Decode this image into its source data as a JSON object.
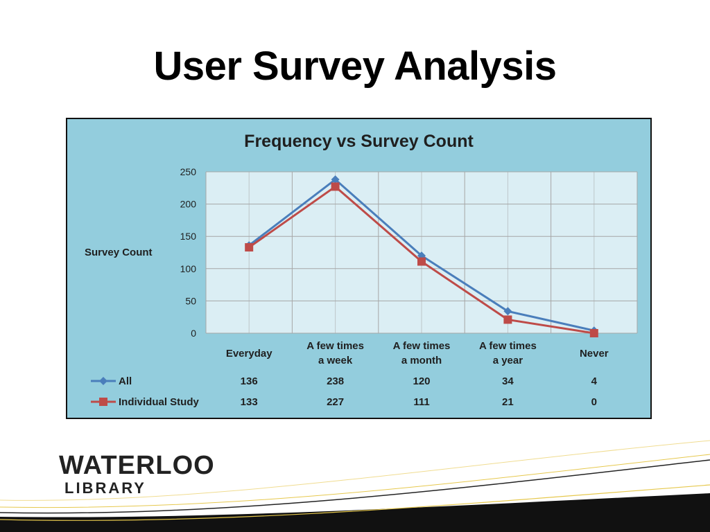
{
  "slide": {
    "title": "User Survey Analysis",
    "logo_line1": "WATERLOO",
    "logo_line2": "LIBRARY"
  },
  "chart_data": {
    "type": "line",
    "title": "Frequency vs Survey Count",
    "xlabel": "",
    "ylabel": "Survey Count",
    "ylim": [
      0,
      250
    ],
    "yticks": [
      0,
      50,
      100,
      150,
      200,
      250
    ],
    "grid": true,
    "legend": "data-table-below",
    "categories": [
      [
        "Everyday"
      ],
      [
        "A few times",
        "a week"
      ],
      [
        "A few times",
        "a month"
      ],
      [
        "A few times",
        "a year"
      ],
      [
        "Never"
      ]
    ],
    "series": [
      {
        "name": "All",
        "values": [
          136,
          238,
          120,
          34,
          4
        ],
        "color": "#4a7ebb",
        "marker": "diamond"
      },
      {
        "name": "Individual Study",
        "values": [
          133,
          227,
          111,
          21,
          0
        ],
        "color": "#be4b48",
        "marker": "square"
      }
    ],
    "colors": {
      "frame_bg": "#93cddd",
      "plot_bg": "#dbeef4",
      "grid": "#a6a6a6"
    }
  }
}
